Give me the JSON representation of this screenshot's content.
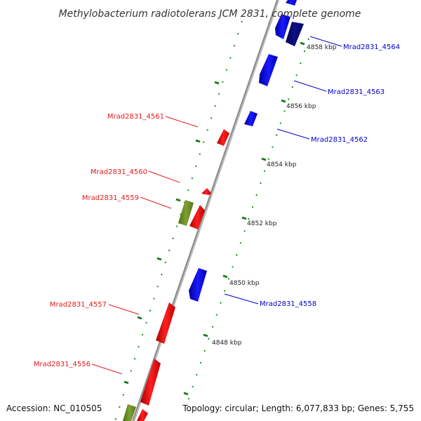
{
  "title": "Methylobacterium radiotolerans JCM 2831, complete genome",
  "footer": {
    "accession": "Accession: NC_010505",
    "summary": "Topology: circular; Length: 6,077,833 bp; Genes: 5,755"
  },
  "scale_ticks": [
    {
      "label": "4858 kbp"
    },
    {
      "label": "4856 kbp"
    },
    {
      "label": "4854 kbp"
    },
    {
      "label": "4852 kbp"
    },
    {
      "label": "4850 kbp"
    },
    {
      "label": "4848 kbp"
    }
  ],
  "genes_reverse": [
    {
      "name": "Mrad2831_4561",
      "color": "#e31a1c"
    },
    {
      "name": "Mrad2831_4560",
      "color": "#e31a1c"
    },
    {
      "name": "Mrad2831_4559",
      "color": "#e31a1c"
    },
    {
      "name": "Mrad2831_4557",
      "color": "#e31a1c"
    },
    {
      "name": "Mrad2831_4556",
      "color": "#e31a1c"
    }
  ],
  "genes_forward": [
    {
      "name": "Mrad2831_4564",
      "color": "#0000cc"
    },
    {
      "name": "Mrad2831_4563",
      "color": "#0000cc"
    },
    {
      "name": "Mrad2831_4562",
      "color": "#0000cc"
    },
    {
      "name": "Mrad2831_4558",
      "color": "#0000cc"
    }
  ],
  "colors": {
    "forward_cds": "#0000ff",
    "forward_cds_dark": "#00008b",
    "reverse_cds": "#ff0000",
    "other_feature": "#6b8e23",
    "backbone": "#999999",
    "dotted_track": "#228b22"
  }
}
